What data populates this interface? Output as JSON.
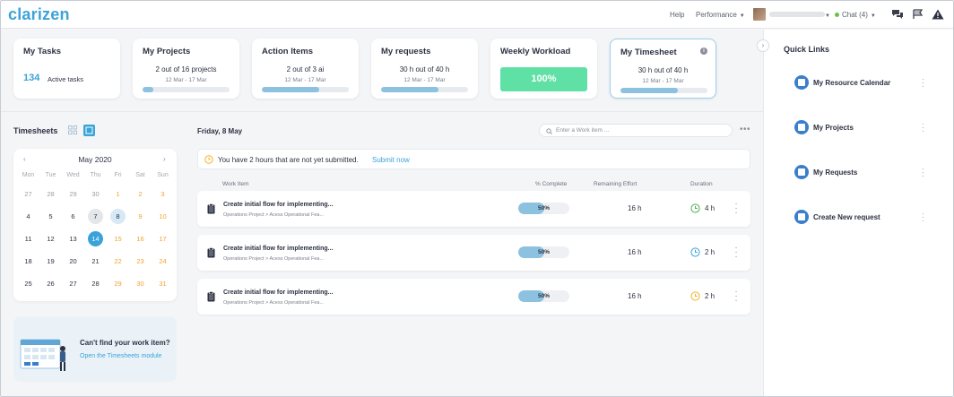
{
  "header": {
    "logo": "clarizen",
    "help": "Help",
    "performance": "Performance",
    "chat": "Chat (4)",
    "icons": [
      "chat-bubbles-icon",
      "flag-icon",
      "alert-triangle-icon"
    ]
  },
  "cards": {
    "tasks": {
      "title": "My Tasks",
      "count": "134",
      "label": "Active tasks"
    },
    "projects": {
      "title": "My Projects",
      "line1": "2 out of 16 projects",
      "line2": "12 Mar - 17 Mar",
      "progress": 0.12
    },
    "actions": {
      "title": "Action Items",
      "line1": "2 out of 3 ai",
      "line2": "12 Mar - 17 Mar",
      "progress": 0.66
    },
    "requests": {
      "title": "My requests",
      "line1": "30 h out of 40 h",
      "line2": "12 Mar - 17 Mar",
      "progress": 0.66
    },
    "workload": {
      "title": "Weekly Workload",
      "value": "100%"
    },
    "timesheet": {
      "title": "My Timesheet",
      "line1": "30 h out of 40 h",
      "line2": "12 Mar - 17 Mar",
      "progress": 0.66
    }
  },
  "timesheets": {
    "title": "Timesheets",
    "calendar": {
      "month": "May 2020",
      "dow": [
        "Mon",
        "Tue",
        "Wed",
        "Thu",
        "Fri",
        "Sat",
        "Sun"
      ],
      "weeks": [
        [
          "27",
          "28",
          "29",
          "30",
          "1",
          "2",
          "3"
        ],
        [
          "4",
          "5",
          "6",
          "7",
          "8",
          "9",
          "10"
        ],
        [
          "11",
          "12",
          "13",
          "14",
          "15",
          "16",
          "17"
        ],
        [
          "18",
          "19",
          "20",
          "21",
          "22",
          "23",
          "24"
        ],
        [
          "25",
          "26",
          "27",
          "28",
          "29",
          "30",
          "31"
        ]
      ]
    },
    "help_title": "Can't find your work item?",
    "help_link": "Open the Timesheets module"
  },
  "main": {
    "date": "Friday, 8 May",
    "search_placeholder": "Enter a Work item ...",
    "notice_text": "You have 2 hours that are not yet submitted.",
    "notice_link": "Submit now",
    "columns": {
      "item": "Work Item",
      "complete": "% Complete",
      "remaining": "Remaining Effort",
      "duration": "Duration"
    },
    "rows": [
      {
        "title": "Create initial flow for implementing...",
        "path": "Operations Project > Acess Operational Fea...",
        "complete": "50%",
        "complete_value": 0.5,
        "remaining": "16 h",
        "duration": "4 h",
        "status_color": "#4caf50"
      },
      {
        "title": "Create initial flow for implementing...",
        "path": "Operations Project > Acess Operational Fea...",
        "complete": "50%",
        "complete_value": 0.5,
        "remaining": "16 h",
        "duration": "2 h",
        "status_color": "#3aa3d9"
      },
      {
        "title": "Create initial flow for implementing...",
        "path": "Operations Project > Acess Operational Fea...",
        "complete": "50%",
        "complete_value": 0.5,
        "remaining": "16 h",
        "duration": "2 h",
        "status_color": "#f0b429"
      }
    ]
  },
  "quick_links": {
    "title": "Quick Links",
    "items": [
      {
        "label": "My Resource Calendar",
        "icon": "calendar-icon"
      },
      {
        "label": "My Projects",
        "icon": "projects-icon"
      },
      {
        "label": "My Requests",
        "icon": "requests-icon"
      },
      {
        "label": "Create New request",
        "icon": "new-request-icon"
      }
    ]
  },
  "colors": {
    "accent": "#3aa3d9",
    "workload": "#5fe0a4",
    "weekend": "#f0a32c"
  }
}
